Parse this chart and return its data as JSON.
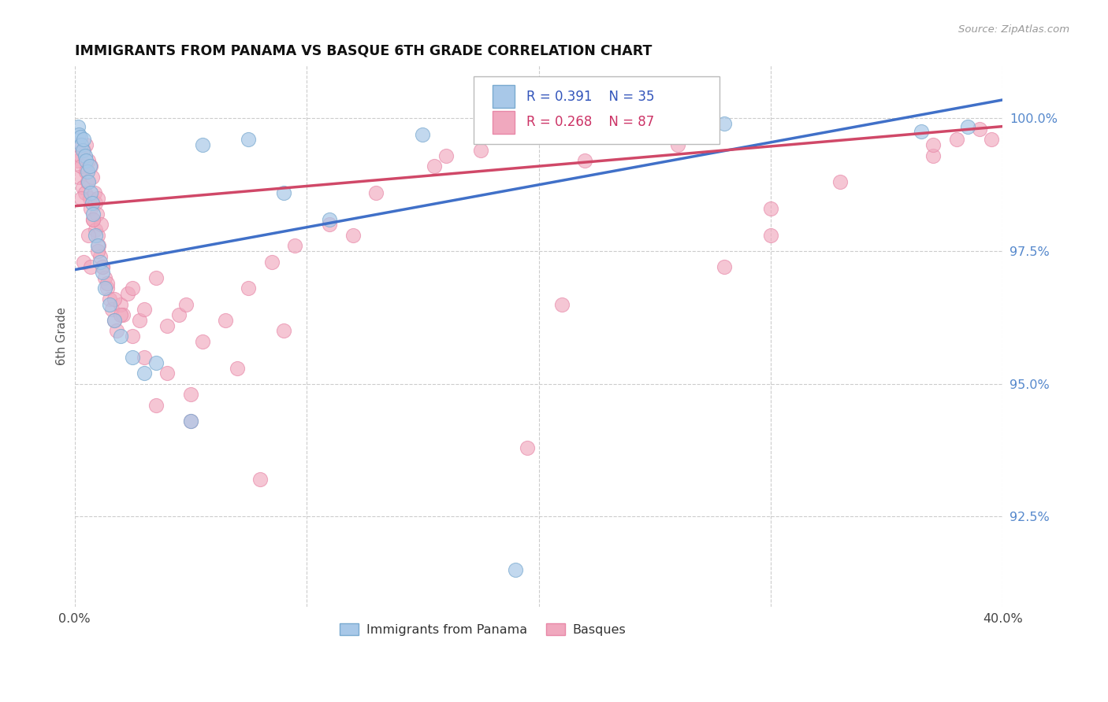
{
  "title": "IMMIGRANTS FROM PANAMA VS BASQUE 6TH GRADE CORRELATION CHART",
  "source": "Source: ZipAtlas.com",
  "ylabel": "6th Grade",
  "y_tick_values": [
    92.5,
    95.0,
    97.5,
    100.0
  ],
  "x_range": [
    0.0,
    40.0
  ],
  "y_range": [
    90.8,
    101.0
  ],
  "legend_blue_r": "R = 0.391",
  "legend_blue_n": "N = 35",
  "legend_pink_r": "R = 0.268",
  "legend_pink_n": "N = 87",
  "legend_label_blue": "Immigrants from Panama",
  "legend_label_pink": "Basques",
  "blue_color": "#a8c8e8",
  "pink_color": "#f0a8be",
  "blue_edge_color": "#7aaad0",
  "pink_edge_color": "#e888a8",
  "blue_line_color": "#4070c8",
  "pink_line_color": "#d04868",
  "blue_r_color": "#3355bb",
  "pink_r_color": "#cc3366",
  "blue_line_x0": 0.0,
  "blue_line_y0": 97.15,
  "blue_line_x1": 40.0,
  "blue_line_y1": 100.35,
  "pink_line_x0": 0.0,
  "pink_line_y0": 98.35,
  "pink_line_x1": 40.0,
  "pink_line_y1": 99.85,
  "blue_x": [
    0.15,
    0.2,
    0.25,
    0.3,
    0.35,
    0.4,
    0.45,
    0.5,
    0.55,
    0.6,
    0.65,
    0.7,
    0.75,
    0.8,
    0.9,
    1.0,
    1.1,
    1.2,
    1.3,
    1.5,
    1.7,
    2.0,
    2.5,
    3.0,
    3.5,
    5.0,
    7.5,
    9.0,
    11.0,
    15.0,
    19.0,
    28.0,
    36.5,
    38.5,
    5.5
  ],
  "blue_y": [
    99.85,
    99.7,
    99.65,
    99.5,
    99.4,
    99.6,
    99.3,
    99.2,
    99.0,
    98.8,
    99.1,
    98.6,
    98.4,
    98.2,
    97.8,
    97.6,
    97.3,
    97.1,
    96.8,
    96.5,
    96.2,
    95.9,
    95.5,
    95.2,
    95.4,
    94.3,
    99.6,
    98.6,
    98.1,
    99.7,
    91.5,
    99.9,
    99.75,
    99.85,
    99.5
  ],
  "pink_x": [
    0.1,
    0.15,
    0.2,
    0.25,
    0.3,
    0.35,
    0.4,
    0.45,
    0.5,
    0.5,
    0.55,
    0.6,
    0.65,
    0.7,
    0.7,
    0.75,
    0.8,
    0.85,
    0.9,
    0.9,
    0.95,
    1.0,
    1.0,
    1.05,
    1.1,
    1.15,
    1.2,
    1.3,
    1.4,
    1.5,
    1.6,
    1.7,
    1.8,
    2.0,
    2.1,
    2.3,
    2.5,
    2.8,
    3.0,
    3.5,
    4.0,
    4.5,
    4.8,
    5.5,
    6.5,
    7.5,
    8.5,
    9.5,
    11.0,
    13.0,
    15.5,
    17.5,
    19.5,
    22.0,
    26.0,
    30.0,
    33.0,
    37.0,
    39.0,
    39.5,
    0.4,
    0.6,
    0.8,
    1.0,
    1.2,
    1.4,
    1.7,
    2.0,
    2.5,
    3.0,
    4.0,
    5.0,
    7.0,
    9.0,
    12.0,
    16.0,
    21.0,
    28.0,
    38.0,
    3.5,
    5.0,
    8.0,
    19.5,
    30.0,
    37.0,
    0.3,
    0.7
  ],
  "pink_y": [
    99.2,
    99.5,
    98.9,
    99.3,
    99.1,
    98.7,
    99.4,
    98.6,
    99.0,
    99.5,
    98.8,
    99.2,
    98.5,
    99.1,
    98.3,
    98.9,
    98.1,
    98.6,
    97.9,
    98.4,
    98.2,
    97.8,
    98.5,
    97.6,
    97.4,
    98.0,
    97.2,
    97.0,
    96.8,
    96.6,
    96.4,
    96.2,
    96.0,
    96.5,
    96.3,
    96.7,
    96.8,
    96.2,
    96.4,
    97.0,
    96.1,
    96.3,
    96.5,
    95.8,
    96.2,
    96.8,
    97.3,
    97.6,
    98.0,
    98.6,
    99.1,
    99.4,
    99.7,
    99.2,
    99.5,
    98.3,
    98.8,
    99.3,
    99.8,
    99.6,
    97.3,
    97.8,
    98.1,
    97.5,
    97.2,
    96.9,
    96.6,
    96.3,
    95.9,
    95.5,
    95.2,
    94.8,
    95.3,
    96.0,
    97.8,
    99.3,
    96.5,
    97.2,
    99.6,
    94.6,
    94.3,
    93.2,
    93.8,
    97.8,
    99.5,
    98.5,
    97.2
  ]
}
